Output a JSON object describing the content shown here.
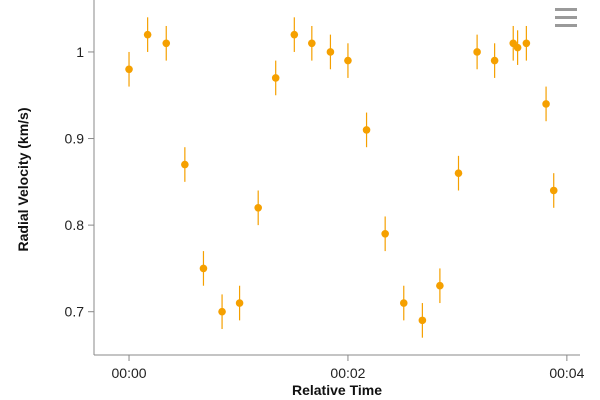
{
  "chart_data": {
    "type": "scatter",
    "xlabel": "Relative Time",
    "ylabel": "Radial Velocity (km/s)",
    "x_unit": "minutes",
    "x_tick_values": [
      0,
      2,
      4
    ],
    "x_tick_labels": [
      "00:00",
      "00:02",
      "00:04"
    ],
    "xlim": [
      -0.32,
      4.12
    ],
    "ylim": [
      0.65,
      1.06
    ],
    "y_tick_values": [
      0.7,
      0.8,
      0.9,
      1.0
    ],
    "y_tick_labels": [
      "0.7",
      "0.8",
      "0.9",
      "1"
    ],
    "grid": false,
    "marker_color": "#f5a000",
    "series": [
      {
        "points": [
          {
            "x": 0.0,
            "y": 0.98,
            "err": 0.02
          },
          {
            "x": 0.17,
            "y": 1.02,
            "err": 0.02
          },
          {
            "x": 0.34,
            "y": 1.01,
            "err": 0.02
          },
          {
            "x": 0.51,
            "y": 0.87,
            "err": 0.02
          },
          {
            "x": 0.68,
            "y": 0.75,
            "err": 0.02
          },
          {
            "x": 0.85,
            "y": 0.7,
            "err": 0.02
          },
          {
            "x": 1.01,
            "y": 0.71,
            "err": 0.02
          },
          {
            "x": 1.18,
            "y": 0.82,
            "err": 0.02
          },
          {
            "x": 1.34,
            "y": 0.97,
            "err": 0.02
          },
          {
            "x": 1.51,
            "y": 1.02,
            "err": 0.02
          },
          {
            "x": 1.67,
            "y": 1.01,
            "err": 0.02
          },
          {
            "x": 1.84,
            "y": 1.0,
            "err": 0.02
          },
          {
            "x": 2.0,
            "y": 0.99,
            "err": 0.02
          },
          {
            "x": 2.17,
            "y": 0.91,
            "err": 0.02
          },
          {
            "x": 2.34,
            "y": 0.79,
            "err": 0.02
          },
          {
            "x": 2.51,
            "y": 0.71,
            "err": 0.02
          },
          {
            "x": 2.68,
            "y": 0.69,
            "err": 0.02
          },
          {
            "x": 2.84,
            "y": 0.73,
            "err": 0.02
          },
          {
            "x": 3.01,
            "y": 0.86,
            "err": 0.02
          },
          {
            "x": 3.18,
            "y": 1.0,
            "err": 0.02
          },
          {
            "x": 3.34,
            "y": 0.99,
            "err": 0.02
          },
          {
            "x": 3.51,
            "y": 1.01,
            "err": 0.02
          },
          {
            "x": 3.55,
            "y": 1.005,
            "err": 0.02
          },
          {
            "x": 3.63,
            "y": 1.01,
            "err": 0.02
          },
          {
            "x": 3.81,
            "y": 0.94,
            "err": 0.02
          },
          {
            "x": 3.88,
            "y": 0.84,
            "err": 0.02
          }
        ]
      }
    ]
  },
  "toolbar": {
    "menu_icon": "hamburger-menu-icon"
  }
}
